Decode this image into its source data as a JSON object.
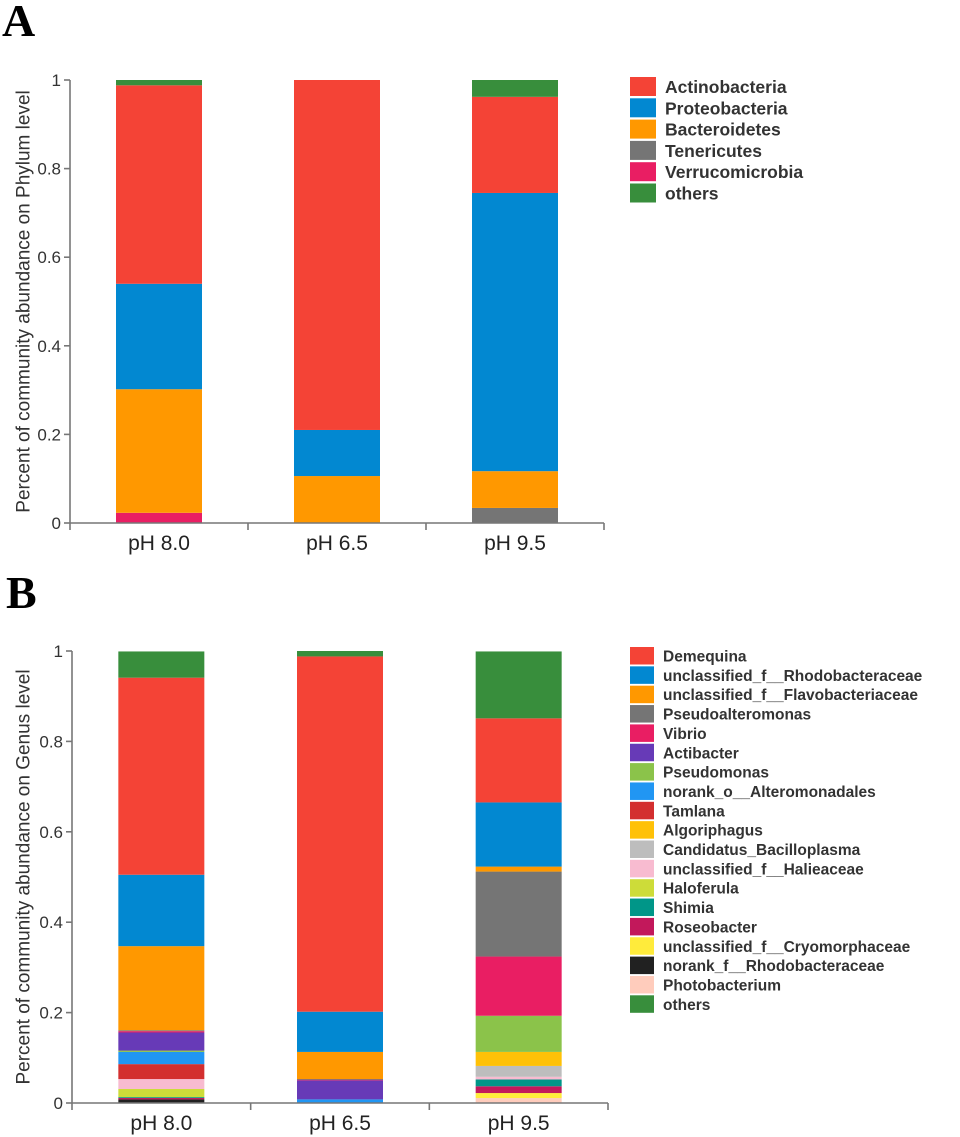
{
  "chart_data": [
    {
      "type": "bar",
      "stacked": true,
      "panel_letter": "A",
      "title": "",
      "xlabel": "",
      "ylabel": "Percent of community abundance on Phylum level",
      "ylim": [
        0,
        1
      ],
      "yticks": [
        "0",
        "0.2",
        "0.4",
        "0.6",
        "0.8",
        "1"
      ],
      "categories": [
        "pH 8.0",
        "pH 6.5",
        "pH 9.5"
      ],
      "legend_position": "right",
      "legend_order": [
        "Actinobacteria",
        "Proteobacteria",
        "Bacteroidetes",
        "Tenericutes",
        "Verrucomicrobia",
        "others"
      ],
      "series": [
        {
          "name": "Verrucomicrobia",
          "color": "#E91E63",
          "values": [
            0.023,
            0.0,
            0.0
          ]
        },
        {
          "name": "Tenericutes",
          "color": "#757575",
          "values": [
            0.0,
            0.0,
            0.034
          ]
        },
        {
          "name": "Bacteroidetes",
          "color": "#FF9800",
          "values": [
            0.279,
            0.106,
            0.083
          ]
        },
        {
          "name": "Proteobacteria",
          "color": "#0288D1",
          "values": [
            0.238,
            0.104,
            0.628
          ]
        },
        {
          "name": "Actinobacteria",
          "color": "#F44336",
          "values": [
            0.448,
            0.79,
            0.217
          ]
        },
        {
          "name": "others",
          "color": "#388E3C",
          "values": [
            0.012,
            0.0,
            0.038
          ]
        }
      ]
    },
    {
      "type": "bar",
      "stacked": true,
      "panel_letter": "B",
      "title": "",
      "xlabel": "",
      "ylabel": "Percent of community abundance on Genus level",
      "ylim": [
        0,
        1
      ],
      "yticks": [
        "0",
        "0.2",
        "0.4",
        "0.6",
        "0.8",
        "1"
      ],
      "categories": [
        "pH 8.0",
        "pH 6.5",
        "pH 9.5"
      ],
      "legend_position": "right",
      "legend_order": [
        "Demequina",
        "unclassified_f__Rhodobacteraceae",
        "unclassified_f__Flavobacteriaceae",
        "Pseudoalteromonas",
        "Vibrio",
        "Actibacter",
        "Pseudomonas",
        "norank_o__Alteromonadales",
        "Tamlana",
        "Algoriphagus",
        "Candidatus_Bacilloplasma",
        "unclassified_f__Halieaceae",
        "Haloferula",
        "Shimia",
        "Roseobacter",
        "unclassified_f__Cryomorphaceae",
        "norank_f__Rhodobacteraceae",
        "Photobacterium",
        "others"
      ],
      "series": [
        {
          "name": "Photobacterium",
          "color": "#FFCCBC",
          "values": [
            0.0,
            0.0,
            0.011
          ]
        },
        {
          "name": "norank_f__Rhodobacteraceae",
          "color": "#212121",
          "values": [
            0.008,
            0.0,
            0.0
          ]
        },
        {
          "name": "unclassified_f__Cryomorphaceae",
          "color": "#FFEB3B",
          "values": [
            0.0,
            0.0,
            0.011
          ]
        },
        {
          "name": "Roseobacter",
          "color": "#C2185B",
          "values": [
            0.003,
            0.0,
            0.015
          ]
        },
        {
          "name": "Shimia",
          "color": "#009688",
          "values": [
            0.002,
            0.0,
            0.015
          ]
        },
        {
          "name": "Haloferula",
          "color": "#CDDC39",
          "values": [
            0.018,
            0.0,
            0.0
          ]
        },
        {
          "name": "unclassified_f__Halieaceae",
          "color": "#F8BBD0",
          "values": [
            0.022,
            0.0,
            0.006
          ]
        },
        {
          "name": "Candidatus_Bacilloplasma",
          "color": "#BDBDBD",
          "values": [
            0.0,
            0.0,
            0.024
          ]
        },
        {
          "name": "Algoriphagus",
          "color": "#FFC107",
          "values": [
            0.0,
            0.0,
            0.031
          ]
        },
        {
          "name": "Tamlana",
          "color": "#D32F2F",
          "values": [
            0.033,
            0.0,
            0.0
          ]
        },
        {
          "name": "norank_o__Alteromonadales",
          "color": "#2196F3",
          "values": [
            0.027,
            0.008,
            0.0
          ]
        },
        {
          "name": "Pseudomonas",
          "color": "#8BC34A",
          "values": [
            0.003,
            0.0,
            0.08
          ]
        },
        {
          "name": "Actibacter",
          "color": "#673AB7",
          "values": [
            0.04,
            0.042,
            0.0
          ]
        },
        {
          "name": "Vibrio",
          "color": "#E91E63",
          "values": [
            0.003,
            0.002,
            0.131
          ]
        },
        {
          "name": "Pseudoalteromonas",
          "color": "#757575",
          "values": [
            0.002,
            0.001,
            0.188
          ]
        },
        {
          "name": "unclassified_f__Flavobacteriaceae",
          "color": "#FF9800",
          "values": [
            0.186,
            0.06,
            0.011
          ]
        },
        {
          "name": "unclassified_f__Rhodobacteraceae",
          "color": "#0288D1",
          "values": [
            0.158,
            0.089,
            0.142
          ]
        },
        {
          "name": "Demequina",
          "color": "#F44336",
          "values": [
            0.436,
            0.786,
            0.186
          ]
        },
        {
          "name": "others",
          "color": "#388E3C",
          "values": [
            0.058,
            0.012,
            0.148
          ]
        }
      ]
    }
  ]
}
